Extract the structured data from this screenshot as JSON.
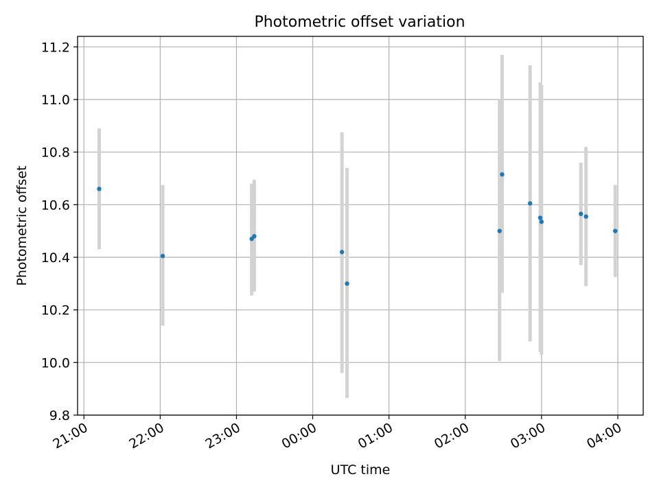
{
  "chart_data": {
    "type": "scatter",
    "title": "Photometric offset variation",
    "xlabel": "UTC time",
    "ylabel": "Photometric offset",
    "xlim": [
      "20:55",
      "04:20"
    ],
    "ylim": [
      9.8,
      11.24
    ],
    "x_ticks": [
      "21:00",
      "22:00",
      "23:00",
      "00:00",
      "01:00",
      "02:00",
      "03:00",
      "04:00"
    ],
    "y_ticks": [
      "9.8",
      "10.0",
      "10.2",
      "10.4",
      "10.6",
      "10.8",
      "11.0",
      "11.2"
    ],
    "grid": true,
    "errorbar_color": "#d3d3d3",
    "point_color": "#1f77b4",
    "points": [
      {
        "x": "21:12",
        "y": 10.66,
        "ylow": 10.43,
        "yhigh": 10.89
      },
      {
        "x": "22:02",
        "y": 10.405,
        "ylow": 10.14,
        "yhigh": 10.675
      },
      {
        "x": "23:12",
        "y": 10.47,
        "ylow": 10.255,
        "yhigh": 10.68
      },
      {
        "x": "23:14",
        "y": 10.48,
        "ylow": 10.27,
        "yhigh": 10.695
      },
      {
        "x": "00:23",
        "y": 10.42,
        "ylow": 9.96,
        "yhigh": 10.875
      },
      {
        "x": "00:27",
        "y": 10.3,
        "ylow": 9.865,
        "yhigh": 10.74
      },
      {
        "x": "02:27",
        "y": 10.5,
        "ylow": 10.005,
        "yhigh": 11.0
      },
      {
        "x": "02:29",
        "y": 10.715,
        "ylow": 10.265,
        "yhigh": 11.17
      },
      {
        "x": "02:51",
        "y": 10.605,
        "ylow": 10.08,
        "yhigh": 11.13
      },
      {
        "x": "02:59",
        "y": 10.55,
        "ylow": 10.04,
        "yhigh": 11.065
      },
      {
        "x": "03:00",
        "y": 10.535,
        "ylow": 10.03,
        "yhigh": 11.055
      },
      {
        "x": "03:31",
        "y": 10.565,
        "ylow": 10.37,
        "yhigh": 10.76
      },
      {
        "x": "03:35",
        "y": 10.555,
        "ylow": 10.29,
        "yhigh": 10.82
      },
      {
        "x": "03:58",
        "y": 10.5,
        "ylow": 10.325,
        "yhigh": 10.675
      }
    ]
  }
}
